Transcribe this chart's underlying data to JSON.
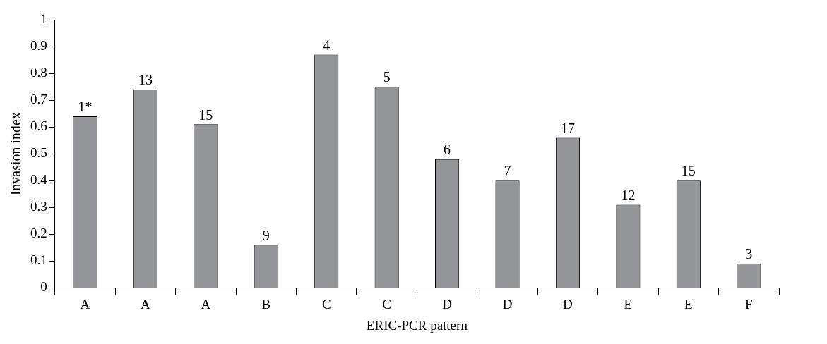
{
  "chart_data": {
    "type": "bar",
    "xlabel": "ERIC-PCR pattern",
    "ylabel": "Invasion index",
    "categories": [
      "A",
      "A",
      "A",
      "B",
      "C",
      "C",
      "D",
      "D",
      "D",
      "E",
      "E",
      "F"
    ],
    "values": [
      0.64,
      0.74,
      0.61,
      0.16,
      0.87,
      0.75,
      0.48,
      0.4,
      0.56,
      0.31,
      0.4,
      0.09
    ],
    "annotations": [
      "1*",
      "13",
      "15",
      "9",
      "4",
      "5",
      "6",
      "7",
      "17",
      "12",
      "15",
      "3"
    ],
    "color": "#939598",
    "ylim": [
      0,
      1
    ],
    "yticks": [
      0,
      0.1,
      0.2,
      0.3,
      0.4,
      0.5,
      0.6,
      0.7,
      0.8,
      0.9,
      1
    ],
    "grid": false,
    "legend": false
  }
}
